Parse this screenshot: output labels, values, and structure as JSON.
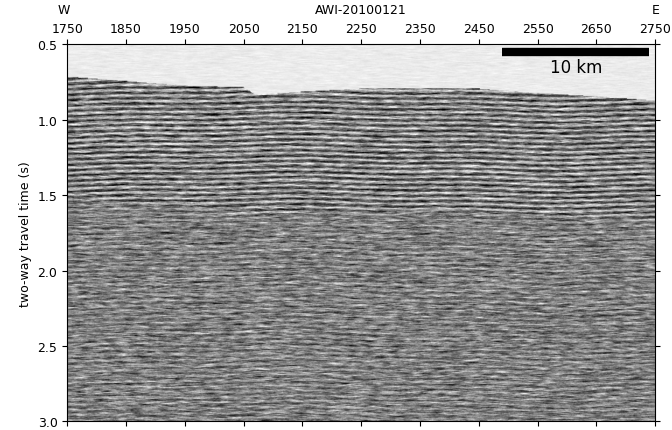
{
  "chart_data": {
    "type": "seismic_section",
    "title": "AWI-20100121",
    "west_label": "W",
    "east_label": "E",
    "ylabel": "two-way travel time (s)",
    "xlim": [
      1750,
      2750
    ],
    "ylim": [
      3.0,
      0.5
    ],
    "xticks": [
      1750,
      1850,
      1950,
      2050,
      2150,
      2250,
      2350,
      2450,
      2550,
      2650,
      2750
    ],
    "yticks": [
      0.5,
      1.0,
      1.5,
      2.0,
      2.5,
      3.0
    ],
    "scale_bar": {
      "label": "10 km",
      "x": [
        2490,
        2740
      ],
      "y": 0.55
    },
    "seafloor": {
      "x": [
        1750,
        1850,
        1950,
        2050,
        2070,
        2150,
        2250,
        2350,
        2450,
        2550,
        2650,
        2750
      ],
      "values": [
        0.72,
        0.75,
        0.78,
        0.79,
        0.84,
        0.82,
        0.8,
        0.8,
        0.8,
        0.83,
        0.85,
        0.88
      ]
    }
  }
}
